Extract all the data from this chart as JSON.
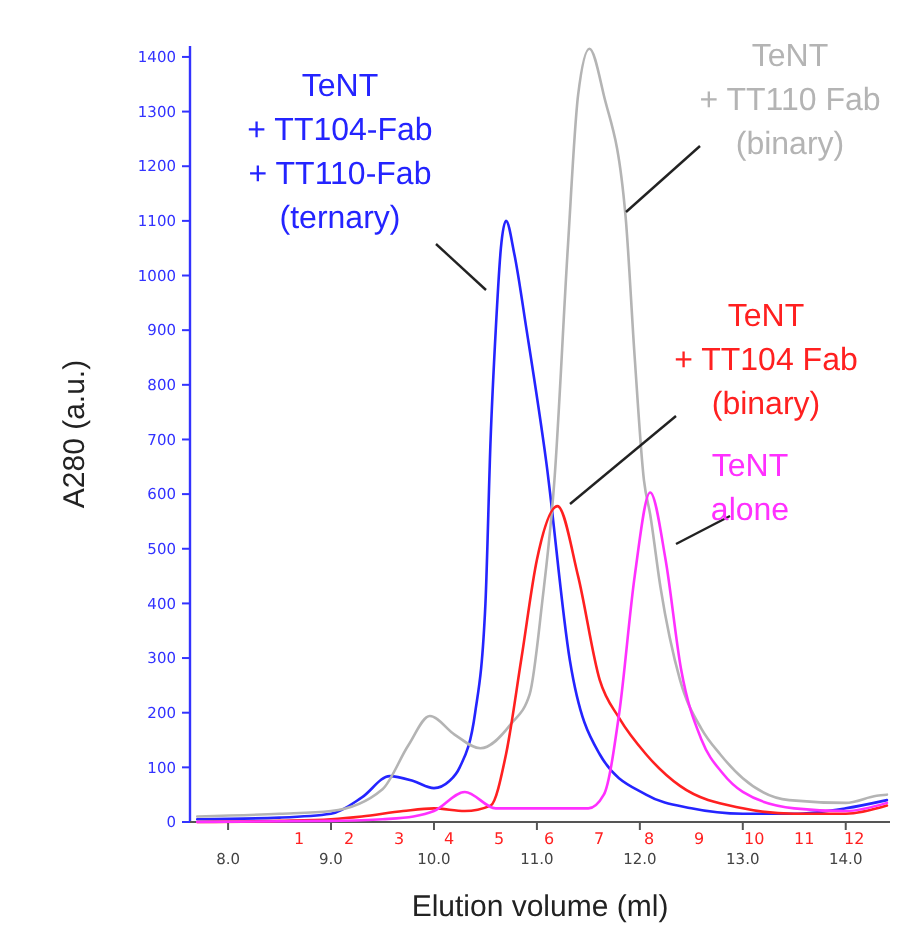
{
  "chart_data": {
    "type": "line",
    "xlabel": "Elution volume (ml)",
    "ylabel": "A280 (a.u.)",
    "xlim": [
      7.63,
      14.43
    ],
    "xticks": [
      {
        "value": 8,
        "label": "8.0"
      },
      {
        "value": 9,
        "label": "9.0"
      },
      {
        "value": 10,
        "label": "10.0"
      },
      {
        "value": 11,
        "label": "11.0"
      },
      {
        "value": 12,
        "label": "12.0"
      },
      {
        "value": 13,
        "label": "13.0"
      },
      {
        "value": 14,
        "label": "14.0"
      }
    ],
    "ylim": [
      0,
      1420
    ],
    "yticks": [
      0,
      100,
      200,
      300,
      400,
      500,
      600,
      700,
      800,
      900,
      1000,
      1100,
      1200,
      1300,
      1400
    ],
    "grid": false,
    "marker": "none",
    "line_style": "solid",
    "series": [
      {
        "name": "TeNT\n+ TT104-Fab\n+ TT110-Fab\n(ternary)",
        "color": "#2424ff",
        "x": [
          7.7,
          8.5,
          9.0,
          9.3,
          9.57,
          9.8,
          10.0,
          10.15,
          10.25,
          10.4,
          10.5,
          10.55,
          10.6,
          10.65,
          10.7,
          10.78,
          10.9,
          11.09,
          11.32,
          11.61,
          12.06,
          12.5,
          13.0,
          13.5,
          14.0,
          14.4
        ],
        "values": [
          5,
          8,
          15,
          45,
          84,
          75,
          62,
          75,
          100,
          200,
          400,
          700,
          900,
          1050,
          1100,
          1040,
          900,
          660,
          296,
          124,
          50,
          25,
          15,
          15,
          25,
          40
        ]
      },
      {
        "name": "TeNT\n+ TT110 Fab\n(binary)",
        "color": "#b4b4b4",
        "x": [
          7.7,
          8.5,
          9.0,
          9.5,
          9.75,
          9.96,
          10.2,
          10.45,
          10.75,
          10.93,
          11.05,
          11.17,
          11.3,
          11.4,
          11.51,
          11.65,
          11.86,
          11.95,
          12.04,
          12.1,
          12.2,
          12.39,
          12.6,
          12.78,
          13.0,
          13.45,
          14.0,
          14.3,
          14.4
        ],
        "values": [
          10,
          15,
          20,
          60,
          140,
          194,
          160,
          135,
          180,
          234,
          400,
          625,
          1050,
          1330,
          1415,
          1330,
          1111,
          850,
          625,
          563,
          430,
          260,
          170,
          124,
          80,
          40,
          35,
          48,
          50
        ]
      },
      {
        "name": "TeNT\n+ TT104 Fab\n(binary)",
        "color": "#ff2020",
        "x": [
          7.7,
          8.5,
          9.0,
          9.3,
          9.7,
          10.0,
          10.3,
          10.55,
          10.7,
          10.85,
          11.0,
          11.2,
          11.4,
          11.61,
          11.8,
          12.06,
          12.39,
          13.0,
          13.5,
          14.0,
          14.4
        ],
        "values": [
          0,
          2,
          5,
          10,
          20,
          25,
          20,
          30,
          124,
          300,
          480,
          578,
          450,
          260,
          190,
          124,
          66,
          25,
          15,
          15,
          30
        ]
      },
      {
        "name": "TeNT\nalone",
        "color": "#ff30ff",
        "x": [
          7.7,
          9.0,
          9.5,
          9.8,
          10.0,
          10.3,
          10.6,
          10.8,
          11.0,
          11.5,
          11.65,
          11.8,
          11.95,
          12.1,
          12.25,
          12.4,
          12.6,
          12.8,
          13.0,
          13.5,
          14.0,
          14.4
        ],
        "values": [
          0,
          2,
          5,
          10,
          20,
          55,
          25,
          25,
          25,
          25,
          50,
          200,
          450,
          603,
          480,
          280,
          150,
          90,
          55,
          25,
          20,
          35
        ]
      }
    ],
    "annotations": [
      "1 2 3 4 5 6 7 8 9 10 11 12"
    ]
  }
}
